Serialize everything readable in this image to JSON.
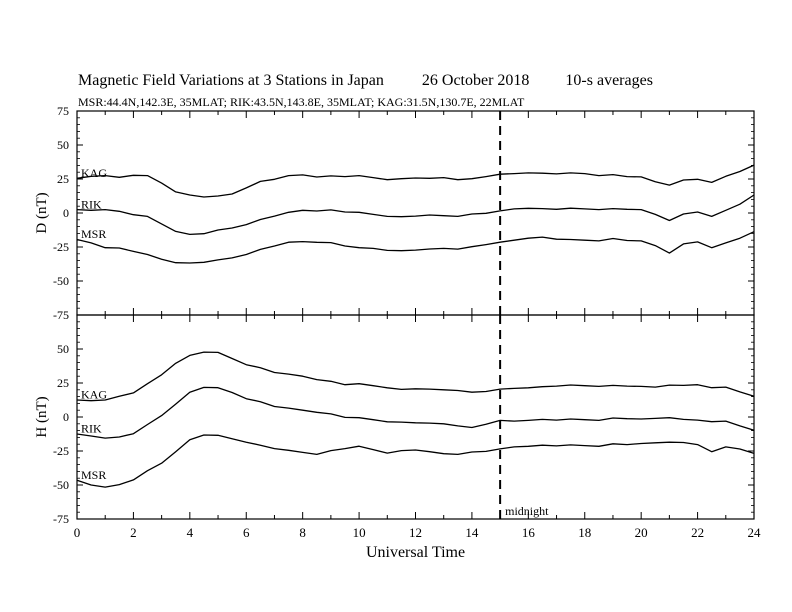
{
  "title": {
    "main": "Magnetic Field Variations at 3 Stations in Japan",
    "date": "26 October 2018",
    "cadence": "10-s averages",
    "stations": "MSR:44.4N,142.3E, 35MLAT;  RIK:43.5N,143.8E, 35MLAT;  KAG:31.5N,130.7E, 22MLAT"
  },
  "chart_data": [
    {
      "type": "line",
      "panel": "D",
      "ylabel": "D (nT)",
      "ylim": [
        -75,
        75
      ],
      "yticks": [
        -75,
        -50,
        -25,
        0,
        25,
        50,
        75
      ],
      "xlim": [
        0,
        24
      ],
      "marker": {
        "x": 15,
        "style": "dashed"
      },
      "series": [
        {
          "name": "KAG",
          "x": [
            0,
            0.5,
            1,
            1.5,
            2,
            2.5,
            3,
            3.5,
            4,
            4.5,
            5,
            5.5,
            6,
            6.5,
            7,
            7.5,
            8,
            8.5,
            9,
            9.5,
            10,
            10.5,
            11,
            11.5,
            12,
            12.5,
            13,
            13.5,
            14,
            14.5,
            15,
            15.5,
            16,
            16.5,
            17,
            17.5,
            18,
            18.5,
            19,
            19.5,
            20,
            20.5,
            21,
            21.5,
            22,
            22.5,
            23,
            23.5,
            24
          ],
          "values": [
            25,
            27,
            28,
            26,
            28,
            27,
            22,
            16,
            13,
            12,
            12,
            14,
            19,
            23,
            25,
            27,
            28,
            27,
            27,
            27,
            27,
            26,
            25,
            25,
            26,
            25,
            26,
            25,
            25,
            27,
            28,
            29,
            30,
            29,
            29,
            29,
            29,
            28,
            28,
            27,
            26,
            23,
            21,
            24,
            25,
            22,
            27,
            31,
            35
          ]
        },
        {
          "name": "RIK",
          "x": [
            0,
            0.5,
            1,
            1.5,
            2,
            2.5,
            3,
            3.5,
            4,
            4.5,
            5,
            5.5,
            6,
            6.5,
            7,
            7.5,
            8,
            8.5,
            9,
            9.5,
            10,
            10.5,
            11,
            11.5,
            12,
            12.5,
            13,
            13.5,
            14,
            14.5,
            15,
            15.5,
            16,
            16.5,
            17,
            17.5,
            18,
            18.5,
            19,
            19.5,
            20,
            20.5,
            21,
            21.5,
            22,
            22.5,
            23,
            23.5,
            24
          ],
          "values": [
            2,
            2,
            3,
            1,
            -1,
            -3,
            -8,
            -13,
            -16,
            -15,
            -13,
            -11,
            -8,
            -5,
            -2,
            0,
            2,
            2,
            2,
            1,
            0,
            -1,
            -2,
            -3,
            -2,
            -2,
            -2,
            -2,
            -1,
            0,
            1,
            3,
            4,
            3,
            3,
            3,
            3,
            3,
            3,
            3,
            2,
            -1,
            -5,
            -1,
            1,
            -3,
            2,
            7,
            13
          ]
        },
        {
          "name": "MSR",
          "x": [
            0,
            0.5,
            1,
            1.5,
            2,
            2.5,
            3,
            3.5,
            4,
            4.5,
            5,
            5.5,
            6,
            6.5,
            7,
            7.5,
            8,
            8.5,
            9,
            9.5,
            10,
            10.5,
            11,
            11.5,
            12,
            12.5,
            13,
            13.5,
            14,
            14.5,
            15,
            15.5,
            16,
            16.5,
            17,
            17.5,
            18,
            18.5,
            19,
            19.5,
            20,
            20.5,
            21,
            21.5,
            22,
            22.5,
            23,
            23.5,
            24
          ],
          "values": [
            -20,
            -22,
            -25,
            -26,
            -28,
            -31,
            -34,
            -36,
            -37,
            -36,
            -35,
            -33,
            -30,
            -27,
            -24,
            -22,
            -21,
            -21,
            -22,
            -24,
            -26,
            -26,
            -27,
            -28,
            -27,
            -27,
            -26,
            -26,
            -25,
            -23,
            -22,
            -20,
            -18,
            -18,
            -19,
            -20,
            -20,
            -20,
            -19,
            -20,
            -21,
            -24,
            -29,
            -23,
            -21,
            -26,
            -22,
            -18,
            -14
          ]
        }
      ]
    },
    {
      "type": "line",
      "panel": "H",
      "ylabel": "H (nT)",
      "ylim": [
        -75,
        75
      ],
      "yticks": [
        -75,
        -50,
        -25,
        0,
        25,
        50
      ],
      "xlim": [
        0,
        24
      ],
      "xticks": [
        0,
        2,
        4,
        6,
        8,
        10,
        12,
        14,
        16,
        18,
        20,
        22,
        24
      ],
      "xlabel": "Universal Time",
      "marker": {
        "x": 15,
        "style": "dashed",
        "label": "midnight"
      },
      "series": [
        {
          "name": "KAG",
          "x": [
            0,
            0.5,
            1,
            1.5,
            2,
            2.5,
            3,
            3.5,
            4,
            4.5,
            5,
            5.5,
            6,
            6.5,
            7,
            7.5,
            8,
            8.5,
            9,
            9.5,
            10,
            10.5,
            11,
            11.5,
            12,
            12.5,
            13,
            13.5,
            14,
            14.5,
            15,
            15.5,
            16,
            16.5,
            17,
            17.5,
            18,
            18.5,
            19,
            19.5,
            20,
            20.5,
            21,
            21.5,
            22,
            22.5,
            23,
            23.5,
            24
          ],
          "values": [
            12,
            12,
            13,
            15,
            18,
            24,
            31,
            40,
            45,
            48,
            47,
            43,
            39,
            36,
            33,
            31,
            30,
            28,
            26,
            24,
            24,
            23,
            22,
            20,
            21,
            20,
            20,
            20,
            18,
            19,
            20,
            21,
            22,
            22,
            23,
            23,
            23,
            23,
            23,
            23,
            22,
            22,
            24,
            23,
            24,
            21,
            22,
            19,
            15
          ]
        },
        {
          "name": "RIK",
          "x": [
            0,
            0.5,
            1,
            1.5,
            2,
            2.5,
            3,
            3.5,
            4,
            4.5,
            5,
            5.5,
            6,
            6.5,
            7,
            7.5,
            8,
            8.5,
            9,
            9.5,
            10,
            10.5,
            11,
            11.5,
            12,
            12.5,
            13,
            13.5,
            14,
            14.5,
            15,
            15.5,
            16,
            16.5,
            17,
            17.5,
            18,
            18.5,
            19,
            19.5,
            20,
            20.5,
            21,
            21.5,
            22,
            22.5,
            23,
            23.5,
            24
          ],
          "values": [
            -13,
            -14,
            -15,
            -15,
            -12,
            -6,
            1,
            10,
            18,
            22,
            21,
            18,
            14,
            11,
            8,
            6,
            5,
            4,
            2,
            0,
            -1,
            -2,
            -3,
            -4,
            -4,
            -5,
            -5,
            -6,
            -8,
            -5,
            -3,
            -3,
            -2,
            -2,
            -2,
            -2,
            -2,
            -2,
            -1,
            -1,
            -2,
            -1,
            0,
            -2,
            -2,
            -4,
            -3,
            -6,
            -10
          ]
        },
        {
          "name": "MSR",
          "x": [
            0,
            0.5,
            1,
            1.5,
            2,
            2.5,
            3,
            3.5,
            4,
            4.5,
            5,
            5.5,
            6,
            6.5,
            7,
            7.5,
            8,
            8.5,
            9,
            9.5,
            10,
            10.5,
            11,
            11.5,
            12,
            12.5,
            13,
            13.5,
            14,
            14.5,
            15,
            15.5,
            16,
            16.5,
            17,
            17.5,
            18,
            18.5,
            19,
            19.5,
            20,
            20.5,
            21,
            21.5,
            22,
            22.5,
            23,
            23.5,
            24
          ],
          "values": [
            -47,
            -50,
            -51,
            -50,
            -46,
            -40,
            -34,
            -25,
            -17,
            -13,
            -14,
            -16,
            -18,
            -21,
            -23,
            -25,
            -26,
            -27,
            -25,
            -23,
            -22,
            -24,
            -26,
            -25,
            -24,
            -26,
            -27,
            -27,
            -26,
            -25,
            -24,
            -22,
            -21,
            -21,
            -21,
            -21,
            -21,
            -21,
            -20,
            -20,
            -20,
            -19,
            -18,
            -19,
            -20,
            -26,
            -22,
            -23,
            -27
          ]
        }
      ]
    }
  ]
}
